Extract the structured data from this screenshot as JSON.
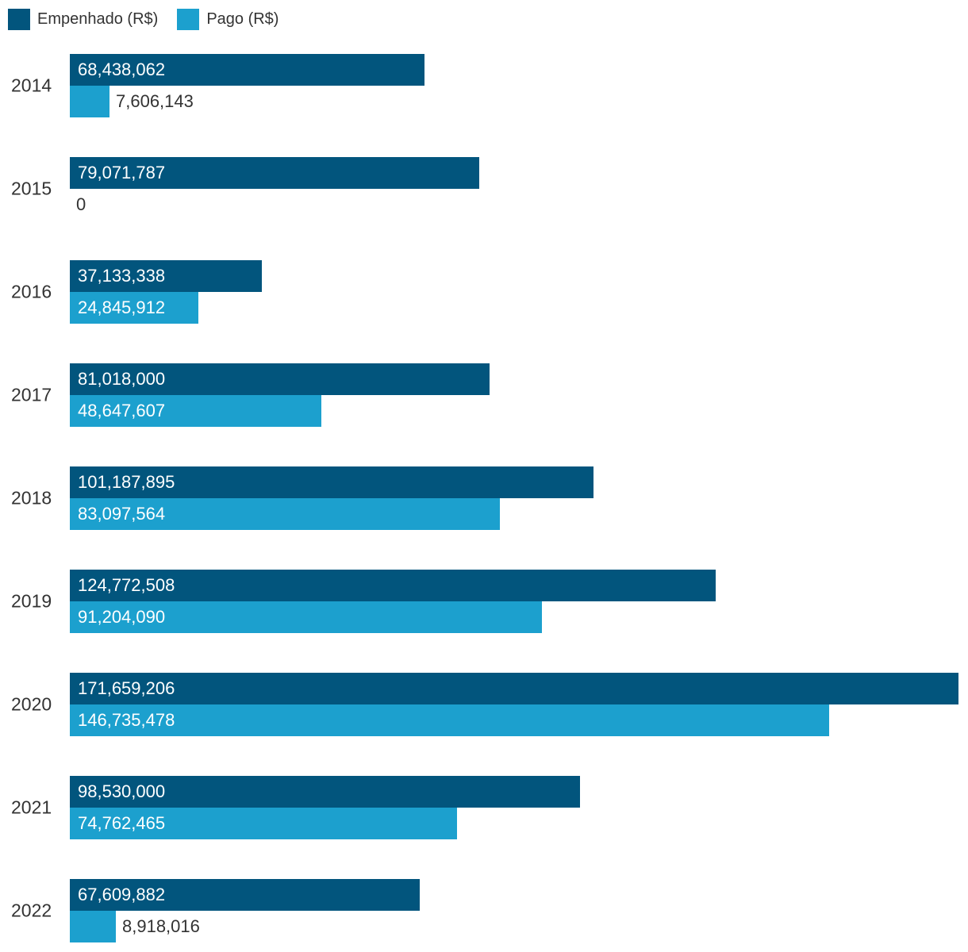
{
  "colors": {
    "empenhado": "#02557D",
    "pago": "#1CA0CE",
    "label_inside": "#FFFFFF",
    "label_outside": "#333333",
    "year_label": "#333333",
    "background": "#FFFFFF"
  },
  "legend": {
    "items": [
      {
        "label": "Empenhado (R$)"
      },
      {
        "label": "Pago (R$)"
      }
    ]
  },
  "chart_data": {
    "type": "bar",
    "orientation": "horizontal",
    "title": "",
    "xlabel": "",
    "ylabel": "",
    "grid": false,
    "axes_visible": false,
    "legend_position": "top-left",
    "value_format": "thousands-comma",
    "categories": [
      "2014",
      "2015",
      "2016",
      "2017",
      "2018",
      "2019",
      "2020",
      "2021",
      "2022"
    ],
    "series": [
      {
        "name": "Empenhado (R$)",
        "color": "#02557D",
        "values": [
          68438062,
          79071787,
          37133338,
          81018000,
          101187895,
          124772508,
          171659206,
          98530000,
          67609882
        ],
        "labels": [
          "68,438,062",
          "79,071,787",
          "37,133,338",
          "81,018,000",
          "101,187,895",
          "124,772,508",
          "171,659,206",
          "98,530,000",
          "67,609,882"
        ]
      },
      {
        "name": "Pago (R$)",
        "color": "#1CA0CE",
        "values": [
          7606143,
          0,
          24845912,
          48647607,
          83097564,
          91204090,
          146735478,
          74762465,
          8918016
        ],
        "labels": [
          "7,606,143",
          "0",
          "24,845,912",
          "48,647,607",
          "83,097,564",
          "91,204,090",
          "146,735,478",
          "74,762,465",
          "8,918,016"
        ]
      }
    ],
    "xmax": 171659206
  }
}
